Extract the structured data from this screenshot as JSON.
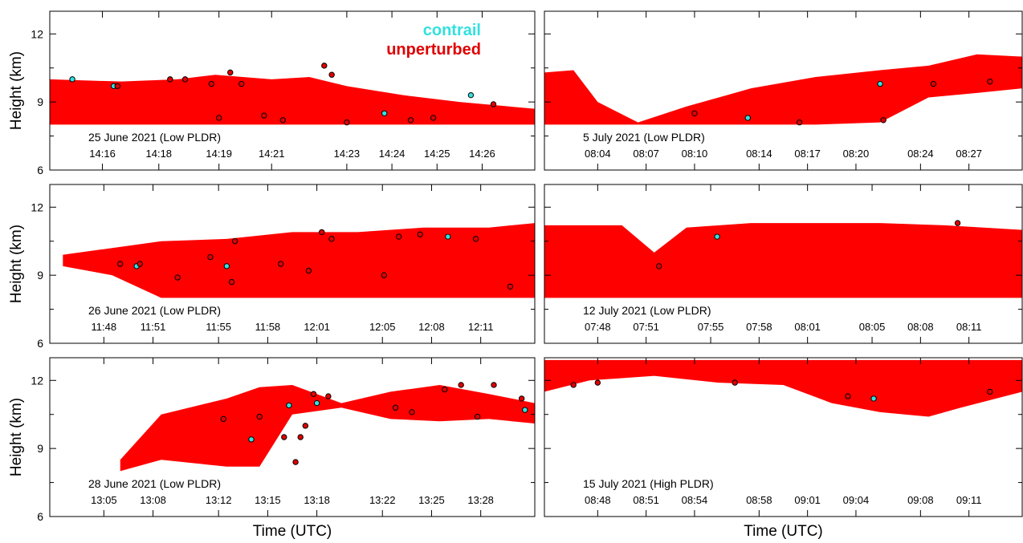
{
  "chart_data": [
    {
      "type": "scatter",
      "annotation": "25 June 2021 (Low PLDR)",
      "ylabel": "Height (km)",
      "xlim": [
        855.1,
        868.0
      ],
      "ylim": [
        6,
        13
      ],
      "yticks": [
        6,
        9,
        12
      ],
      "yminor": [
        7.5,
        10.5
      ],
      "xticks": [
        {
          "value": 856.5,
          "label": "14:16"
        },
        {
          "value": 858.0,
          "label": "14:18"
        },
        {
          "value": 859.6,
          "label": "14:19"
        },
        {
          "value": 861.0,
          "label": "14:21"
        },
        {
          "value": 863.0,
          "label": "14:23"
        },
        {
          "value": 864.2,
          "label": "14:24"
        },
        {
          "value": 865.4,
          "label": "14:25"
        },
        {
          "value": 866.6,
          "label": "14:26"
        }
      ],
      "area": {
        "color": "#ff0000",
        "x": [
          855.1,
          857,
          858.5,
          859.5,
          861,
          862,
          863,
          864.5,
          866,
          868
        ],
        "top": [
          10.0,
          9.9,
          10.0,
          10.2,
          10.0,
          10.1,
          9.7,
          9.3,
          9.0,
          8.7
        ],
        "base": [
          8,
          8,
          8,
          8,
          8,
          8,
          8,
          8,
          8,
          8
        ]
      },
      "series": [
        {
          "name": "contrail",
          "color": "#33e0e0",
          "x": [
            855.7,
            856.8,
            864.0,
            866.3
          ],
          "y": [
            10.0,
            9.7,
            8.5,
            9.3
          ]
        },
        {
          "name": "unperturbed",
          "color": "#e00000",
          "x": [
            856.9,
            858.3,
            858.7,
            859.4,
            859.9,
            860.2,
            859.6,
            860.8,
            861.3,
            862.4,
            862.6,
            863.0,
            864.7,
            865.3,
            866.9
          ],
          "y": [
            9.7,
            10.0,
            10.0,
            9.8,
            10.3,
            9.8,
            8.3,
            8.4,
            8.2,
            10.6,
            10.2,
            8.1,
            8.2,
            8.3,
            8.9
          ]
        }
      ]
    },
    {
      "type": "scatter",
      "annotation": "5 July 2021 (Low PLDR)",
      "xlim": [
        481.2,
        510.8
      ],
      "ylim": [
        6,
        13
      ],
      "yticks": [
        6,
        9,
        12
      ],
      "yminor": [
        7.5,
        10.5
      ],
      "xticks": [
        {
          "value": 484.5,
          "label": "08:04"
        },
        {
          "value": 487.5,
          "label": "08:07"
        },
        {
          "value": 490.5,
          "label": "08:10"
        },
        {
          "value": 494.5,
          "label": "08:14"
        },
        {
          "value": 497.5,
          "label": "08:17"
        },
        {
          "value": 500.5,
          "label": "08:20"
        },
        {
          "value": 504.5,
          "label": "08:24"
        },
        {
          "value": 507.5,
          "label": "08:27"
        }
      ],
      "area": {
        "color": "#ff0000",
        "x": [
          481.2,
          483,
          484.5,
          487,
          490,
          494,
          498,
          502,
          505,
          508,
          510.8
        ],
        "top": [
          10.3,
          10.4,
          9.0,
          8.1,
          8.8,
          9.6,
          10.1,
          10.4,
          10.6,
          11.1,
          11.0
        ],
        "base": [
          8.0,
          8.0,
          8.0,
          8.0,
          8.0,
          8.0,
          8.0,
          8.1,
          9.2,
          9.4,
          9.6
        ]
      },
      "series": [
        {
          "color": "#33e0e0",
          "x": [
            502.0,
            493.8
          ],
          "y": [
            9.8,
            8.3
          ]
        },
        {
          "color": "#e00000",
          "x": [
            490.5,
            505.3,
            508.8,
            502.2,
            497.0
          ],
          "y": [
            8.5,
            9.8,
            9.9,
            8.2,
            8.1
          ]
        }
      ]
    },
    {
      "type": "scatter",
      "annotation": "26 June 2021 (Low PLDR)",
      "ylabel": "Height (km)",
      "xlim": [
        705.2,
        734.8
      ],
      "ylim": [
        6,
        13
      ],
      "yticks": [
        6,
        9,
        12
      ],
      "yminor": [
        7.5,
        10.5
      ],
      "xticks": [
        {
          "value": 708.5,
          "label": "11:48"
        },
        {
          "value": 711.5,
          "label": "11:51"
        },
        {
          "value": 715.5,
          "label": "11:55"
        },
        {
          "value": 718.5,
          "label": "11:58"
        },
        {
          "value": 721.5,
          "label": "12:01"
        },
        {
          "value": 725.5,
          "label": "12:05"
        },
        {
          "value": 728.5,
          "label": "12:08"
        },
        {
          "value": 731.5,
          "label": "12:11"
        }
      ],
      "area": {
        "color": "#ff0000",
        "x": [
          706,
          709,
          712,
          716,
          720,
          724,
          728,
          732,
          734.8
        ],
        "top": [
          9.9,
          10.2,
          10.5,
          10.6,
          10.9,
          10.9,
          11.1,
          11.1,
          11.3
        ],
        "base": [
          9.4,
          9.0,
          8.0,
          8.0,
          8.0,
          8.0,
          8.0,
          8.0,
          8.0
        ]
      },
      "series": [
        {
          "color": "#33e0e0",
          "x": [
            716.0,
            729.5,
            710.5
          ],
          "y": [
            9.4,
            10.7,
            9.4
          ]
        },
        {
          "color": "#e00000",
          "x": [
            709.5,
            710.7,
            713.0,
            715.0,
            716.5,
            716.3,
            719.3,
            721.0,
            721.8,
            722.4,
            725.6,
            726.5,
            727.8,
            731.2,
            733.3
          ],
          "y": [
            9.5,
            9.5,
            8.9,
            9.8,
            10.5,
            8.7,
            9.5,
            9.2,
            10.9,
            10.6,
            9.0,
            10.7,
            10.8,
            10.6,
            8.5
          ]
        }
      ]
    },
    {
      "type": "scatter",
      "annotation": "12 July 2021 (Low PLDR)",
      "xlim": [
        465.2,
        494.8
      ],
      "ylim": [
        6,
        13
      ],
      "yticks": [
        6,
        9,
        12
      ],
      "yminor": [
        7.5,
        10.5
      ],
      "xticks": [
        {
          "value": 468.5,
          "label": "07:48"
        },
        {
          "value": 471.5,
          "label": "07:51"
        },
        {
          "value": 475.5,
          "label": "07:55"
        },
        {
          "value": 478.5,
          "label": "07:58"
        },
        {
          "value": 481.5,
          "label": "08:01"
        },
        {
          "value": 485.5,
          "label": "08:05"
        },
        {
          "value": 488.5,
          "label": "08:08"
        },
        {
          "value": 491.5,
          "label": "08:11"
        }
      ],
      "area": {
        "color": "#ff0000",
        "x": [
          465.2,
          470,
          472,
          474,
          478,
          481,
          486,
          490,
          494.8
        ],
        "top": [
          11.2,
          11.2,
          10.0,
          11.1,
          11.3,
          11.3,
          11.3,
          11.2,
          11.0
        ],
        "base": [
          8,
          8,
          8,
          8,
          8,
          8,
          8,
          8,
          8
        ]
      },
      "series": [
        {
          "color": "#33e0e0",
          "x": [
            475.9
          ],
          "y": [
            10.7
          ]
        },
        {
          "color": "#e00000",
          "x": [
            472.3,
            490.8
          ],
          "y": [
            9.4,
            11.3
          ]
        }
      ]
    },
    {
      "type": "scatter",
      "annotation": "28 June 2021 (Low PLDR)",
      "ylabel": "Height (km)",
      "xlabel": "Time (UTC)",
      "xlim": [
        782.2,
        811.8
      ],
      "ylim": [
        6,
        13
      ],
      "yticks": [
        6,
        9,
        12
      ],
      "yminor": [
        7.5,
        10.5
      ],
      "xticks": [
        {
          "value": 785.5,
          "label": "13:05"
        },
        {
          "value": 788.5,
          "label": "13:08"
        },
        {
          "value": 792.5,
          "label": "13:12"
        },
        {
          "value": 795.5,
          "label": "13:15"
        },
        {
          "value": 798.5,
          "label": "13:18"
        },
        {
          "value": 802.5,
          "label": "13:22"
        },
        {
          "value": 805.5,
          "label": "13:25"
        },
        {
          "value": 808.5,
          "label": "13:28"
        }
      ],
      "area": {
        "color": "#ff0000",
        "x": [
          786.5,
          789,
          793,
          795,
          797,
          800,
          803,
          806,
          809,
          811.8
        ],
        "top": [
          8.5,
          10.5,
          11.2,
          11.7,
          11.8,
          11.0,
          11.5,
          11.8,
          11.4,
          11.0
        ],
        "base": [
          8.0,
          8.5,
          8.2,
          8.2,
          10.5,
          10.8,
          10.3,
          10.2,
          10.3,
          10.1
        ]
      },
      "series": [
        {
          "color": "#33e0e0",
          "x": [
            794.5,
            796.8,
            798.5,
            811.2
          ],
          "y": [
            9.4,
            10.9,
            11.0,
            10.7
          ]
        },
        {
          "color": "#e00000",
          "x": [
            792.8,
            795.0,
            796.5,
            797.2,
            797.5,
            797.8,
            798.3,
            799.2,
            803.3,
            804.3,
            806.3,
            807.3,
            808.3,
            809.3,
            811.0
          ],
          "y": [
            10.3,
            10.4,
            9.5,
            8.4,
            9.5,
            10.0,
            11.4,
            11.3,
            10.8,
            10.6,
            11.6,
            11.8,
            10.4,
            11.8,
            11.2
          ]
        }
      ]
    },
    {
      "type": "scatter",
      "annotation": "15 July 2021 (High PLDR)",
      "xlabel": "Time (UTC)",
      "xlim": [
        525.2,
        554.8
      ],
      "ylim": [
        6,
        13
      ],
      "yticks": [
        6,
        9,
        12
      ],
      "yminor": [
        7.5,
        10.5
      ],
      "xticks": [
        {
          "value": 528.5,
          "label": "08:48"
        },
        {
          "value": 531.5,
          "label": "08:51"
        },
        {
          "value": 534.5,
          "label": "08:54"
        },
        {
          "value": 538.5,
          "label": "08:58"
        },
        {
          "value": 541.5,
          "label": "09:01"
        },
        {
          "value": 544.5,
          "label": "09:04"
        },
        {
          "value": 548.5,
          "label": "09:08"
        },
        {
          "value": 551.5,
          "label": "09:11"
        }
      ],
      "area": {
        "color": "#ff0000",
        "x": [
          525.2,
          528,
          532,
          536,
          540,
          543,
          546,
          549,
          551,
          554.8
        ],
        "top": [
          12.9,
          12.9,
          12.9,
          12.9,
          12.9,
          12.9,
          12.9,
          12.9,
          12.9,
          12.9
        ],
        "base": [
          11.5,
          12.0,
          12.2,
          11.9,
          11.8,
          11.0,
          10.6,
          10.4,
          10.8,
          11.5
        ]
      },
      "series": [
        {
          "color": "#33e0e0",
          "x": [
            545.6
          ],
          "y": [
            11.2
          ]
        },
        {
          "color": "#e00000",
          "x": [
            527.0,
            528.5,
            537.0,
            544.0,
            552.8
          ],
          "y": [
            11.8,
            11.9,
            11.9,
            11.3,
            11.5
          ]
        }
      ]
    }
  ]
}
